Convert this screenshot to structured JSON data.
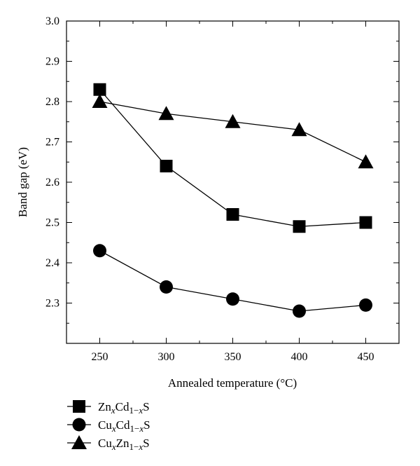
{
  "chart_data": {
    "type": "line",
    "title": "",
    "xlabel": "Annealed temperature (°C)",
    "ylabel": "Band gap (eV)",
    "xlim": [
      225,
      475
    ],
    "ylim": [
      2.2,
      3.0
    ],
    "xticks": [
      250,
      300,
      350,
      400,
      450
    ],
    "yticks": [
      2.3,
      2.4,
      2.5,
      2.6,
      2.7,
      2.8,
      2.9,
      3.0
    ],
    "x": [
      250,
      300,
      350,
      400,
      450
    ],
    "series": [
      {
        "name": "ZnxCd1−xS",
        "marker": "square",
        "values": [
          2.83,
          2.64,
          2.52,
          2.49,
          2.5
        ]
      },
      {
        "name": "CuxCd1−xS",
        "marker": "circle",
        "values": [
          2.43,
          2.34,
          2.31,
          2.28,
          2.295
        ]
      },
      {
        "name": "CuxZn1−xS",
        "marker": "triangle",
        "values": [
          2.8,
          2.77,
          2.75,
          2.73,
          2.65
        ]
      }
    ],
    "legend_position": "bottom-left",
    "grid": false
  }
}
